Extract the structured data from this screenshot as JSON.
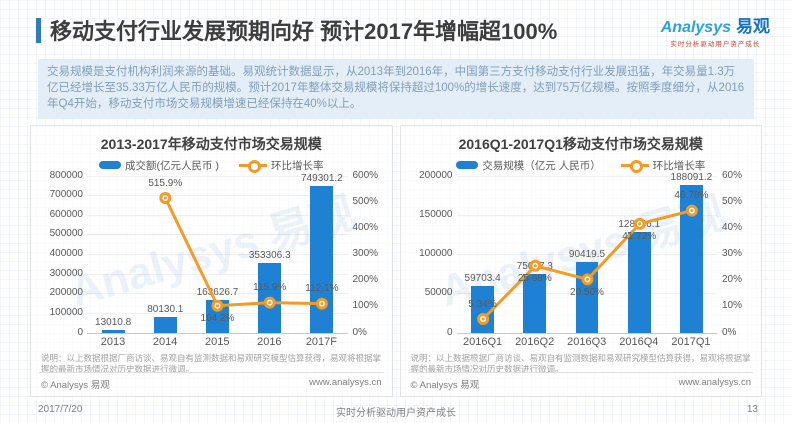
{
  "header": {
    "title": "移动支付行业发展预期向好 预计2017年增幅超100%",
    "logo": {
      "brand_en": "Analysys",
      "brand_cn": "易观",
      "tagline": "实时分析驱动用户资产成长"
    }
  },
  "intro": {
    "text": "交易规模是支付机构利润来源的基础。易观统计数据显示，从2013年到2016年，中国第三方支付移动支付行业发展迅猛，年交易量1.3万亿已经增长至35.33万亿人民币的规模。预计2017年整体交易规模将保持超过100%的增长速度，达到75万亿规模。按照季度细分，从2016年Q4开始，移动支付市场交易规模增速已经保持在40%以上。"
  },
  "colors": {
    "bar": "#1E81D4",
    "line": "#F59A23",
    "accent": "#2D7BC2"
  },
  "watermark": "Analysys 易观",
  "chart_data": [
    {
      "type": "bar",
      "title": "2013-2017年移动支付市场交易规模",
      "categories": [
        "2013",
        "2014",
        "2015",
        "2016",
        "2017F"
      ],
      "series": [
        {
          "name": "成交额(亿元人民币 )",
          "type": "bar",
          "axis": "left",
          "values": [
            13010.8,
            80130.1,
            163626.7,
            353306.3,
            749301.2
          ]
        },
        {
          "name": "环比增长率",
          "type": "line",
          "axis": "right",
          "unit": "%",
          "values": [
            null,
            515.9,
            104.2,
            115.9,
            112.1
          ],
          "labels": [
            "",
            "515.9%",
            "104.2%",
            "115.9%",
            "112.1%"
          ],
          "label_side": [
            "",
            "up",
            "down",
            "up",
            "up"
          ]
        }
      ],
      "left_axis": {
        "min": 0,
        "max": 800000,
        "step": 100000
      },
      "right_axis": {
        "min": 0,
        "max": 600,
        "step": 100,
        "suffix": "%"
      },
      "note": "说明：以上数据根据厂商访谈、易观自有监测数据和易观研究模型估算获得，易观将根据掌握的最新市场情况对历史数据进行微调。",
      "copyright": "© Analysys 易观",
      "website": "www.analysys.cn",
      "grid": true,
      "legend_position": "top"
    },
    {
      "type": "bar",
      "title": "2016Q1-2017Q1移动支付市场交易规模",
      "categories": [
        "2016Q1",
        "2016Q2",
        "2016Q3",
        "2016Q4",
        "2017Q1"
      ],
      "series": [
        {
          "name": "交易规模（亿元 人民币）",
          "type": "bar",
          "axis": "left",
          "values": [
            59703.4,
            75037.3,
            90419.5,
            128146.1,
            188091.2
          ]
        },
        {
          "name": "环比增长率",
          "type": "line",
          "axis": "right",
          "unit": "%",
          "values": [
            5.34,
            25.68,
            20.5,
            41.72,
            46.78
          ],
          "labels": [
            "5.34%",
            "25.68%",
            "20.50%",
            "41.72%",
            "46.78%"
          ],
          "label_side": [
            "up",
            "down",
            "down",
            "down",
            "up"
          ]
        }
      ],
      "left_axis": {
        "min": 0,
        "max": 200000,
        "step": 50000
      },
      "right_axis": {
        "min": 0,
        "max": 60,
        "step": 10,
        "suffix": "%"
      },
      "note": "说明：以上数据根据厂商访谈、易观自有监测数据和易观研究模型估算获得，易观将根据掌握的最新市场情况对历史数据进行微调。",
      "copyright": "© Analysys 易观",
      "website": "www.analysys.cn",
      "grid": true,
      "legend_position": "top"
    }
  ],
  "footer": {
    "date": "2017/7/20",
    "slogan": "实时分析驱动用户资产成长",
    "page": "13"
  }
}
